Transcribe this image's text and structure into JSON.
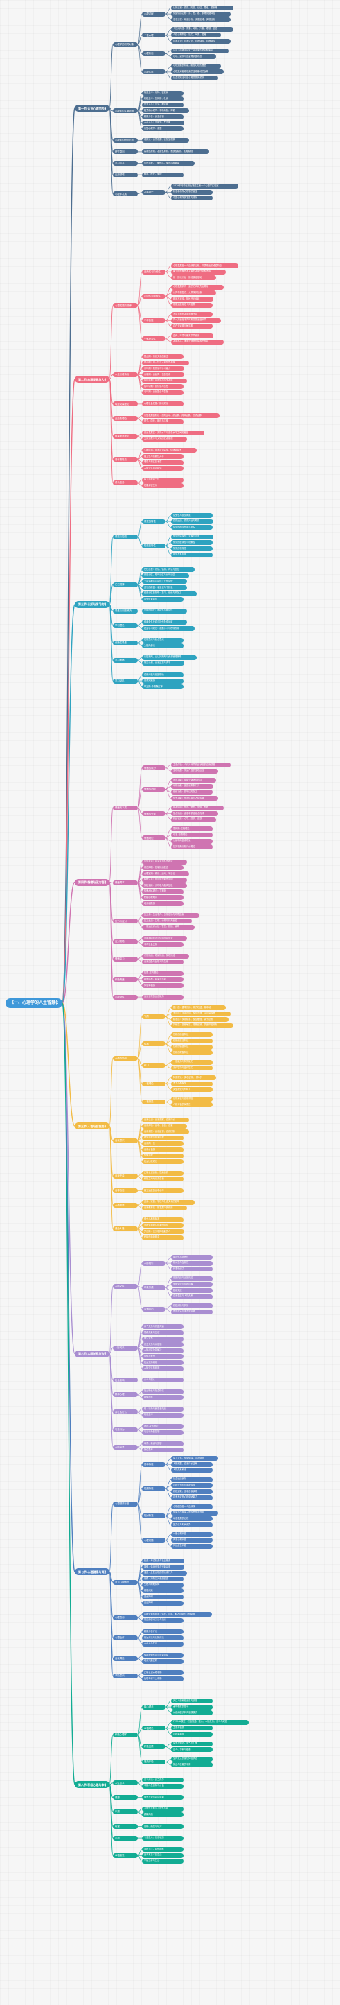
{
  "root": {
    "label": "《一、心理学的人生智慧(xiao...)》",
    "color": "#3f98d9"
  },
  "colors": {
    "line_root": "#4a6a8a",
    "branches": [
      "#4d6e90",
      "#ef6d82",
      "#2ea3c0",
      "#cf74b1",
      "#f2bb45",
      "#a98ed1",
      "#4f7fbf",
      "#12ac93"
    ]
  },
  "branches": [
    {
      "label": "第一节 认识心理学的基本原理",
      "children": [
        {
          "label": "心理学的研究对象",
          "children": [
            {
              "label": "心理过程",
              "leaves": [
                "认知过程：感觉、知觉、记忆、思维、想象等",
                "情绪情感过程：喜、怒、哀、惧等情绪体验",
                "意志过程：确定目标、克服困难、实现目标"
              ]
            },
            {
              "label": "个性心理",
              "leaves": [
                "个性倾向性：需要、动机、兴趣、理想、信念",
                "个性心理特征：能力、气质、性格",
                "自我意识：自我认识、自我体验、自我调控"
              ]
            },
            {
              "label": "心理状态",
              "leaves": [
                "注意：心理活动对一定对象的指向和集中",
                "心境、激情与应激等情绪状态"
              ]
            },
            {
              "label": "心理实质",
              "leaves": [
                "心理是脑的机能，脑是心理的器官",
                "心理是对客观现实的主观能动的反映",
                "社会实践活动是心理发展的源泉"
              ]
            }
          ]
        },
        {
          "label": "心理学的主要流派",
          "leaves": [
            "构造主义：冯特、铁钦纳",
            "机能主义：詹姆斯、杜威",
            "行为主义：华生、斯金纳",
            "格式塔心理学：韦特海默、苛勒",
            "精神分析：弗洛伊德",
            "人本主义：马斯洛、罗杰斯",
            "认知心理学：奈瑟"
          ]
        },
        {
          "label": "心理学的研究方法",
          "leaves": [
            "观察法：自然观察、实验室观察"
          ]
        },
        {
          "label": "研究原则",
          "leaves": [
            "客观性原则、发展性原则、系统性原则、伦理原则"
          ]
        },
        {
          "label": "学习意义",
          "leaves": [
            "认识自我，了解他人，促进心理健康"
          ]
        },
        {
          "label": "应用领域",
          "leaves": [
            "教育、医疗、管理"
          ]
        },
        {
          "label": "心理学发展",
          "children": [
            {
              "label": "发展简史",
              "leaves": [
                "1879年冯特在莱比锡建立第一个心理学实验室",
                "标志着科学心理学的诞生",
                "中国心理学的发展与现状"
              ]
            }
          ]
        }
      ]
    },
    {
      "label": "第二节 心理发展与人生阶段",
      "children": [
        {
          "label": "心理发展的规律",
          "children": [
            {
              "label": "连续性与阶段性",
              "leaves": [
                "心理发展是一个连续的过程，又表现出阶段性特点",
                "每个阶段都有其主要的发展任务和矛盾",
                "前一阶段为后一阶段奠定基础"
              ]
            },
            {
              "label": "定向性与顺序性",
              "leaves": [
                "心理发展具有一定的方向和先后顺序",
                "从简单到复杂、从具体到抽象",
                "顺序不可逆，阶段不可逾越",
                "发展速度存在个体差异"
              ]
            },
            {
              "label": "不平衡性",
              "leaves": [
                "不同方面的发展速度不同",
                "同一方面在不同时期发展速度不同",
                "存在关键期与敏感期"
              ]
            },
            {
              "label": "个体差异性",
              "leaves": [
                "遗传、环境与教育共同作用",
                "发展水平、速度与优势领域各不相同"
              ]
            }
          ]
        },
        {
          "label": "人生阶段特点",
          "leaves": [
            "婴儿期：依恋关系的建立",
            "幼儿期：自主性与主动性的发展",
            "童年期：勤奋感与学习能力",
            "青春期：自我同一性的形成",
            "成年早期：亲密感与事业发展",
            "成年中期：繁衍感与责任",
            "老年期：自我整合与智慧"
          ]
        },
        {
          "label": "埃里克森理论",
          "leaves": [
            "心理社会发展八阶段理论"
          ]
        },
        {
          "label": "皮亚杰理论",
          "leaves": [
            "认知发展四阶段：感知运动、前运算、具体运算、形式运算",
            "图式、同化、顺应与平衡"
          ]
        },
        {
          "label": "维果斯基理论",
          "leaves": [
            "最近发展区：实际水平与潜在水平之间的差距",
            "支架式教学与文化历史发展观"
          ]
        },
        {
          "label": "青年期特点",
          "leaves": [
            "生理成熟、自我意识高涨、情绪波动大",
            "独立性与依赖性并存",
            "理想与现实的矛盾",
            "人际交往需求增强"
          ]
        },
        {
          "label": "成长任务",
          "leaves": [
            "建立自我同一性",
            "发展亲密关系"
          ]
        }
      ]
    },
    {
      "label": "第三节 认知与学习的智慧",
      "children": [
        {
          "label": "感觉与知觉",
          "children": [
            {
              "label": "感觉的特性",
              "leaves": [
                "感受性与感觉阈限",
                "感觉适应、感觉对比与联觉",
                "感觉的相互作用与补偿"
              ]
            },
            {
              "label": "知觉的特性",
              "leaves": [
                "知觉的选择性：对象与背景",
                "知觉的整体性与理解性",
                "知觉的恒常性",
                "错觉及其应用"
              ]
            }
          ]
        },
        {
          "label": "记忆规律",
          "leaves": [
            "记忆过程：识记、保持、再认与回忆",
            "感觉记忆、短时记忆与长时记忆",
            "艾宾浩斯遗忘曲线：先快后慢",
            "遗忘的原因：衰退说与干扰说",
            "促进记忆的策略：复习、组织与精加工",
            "系列位置效应"
          ]
        },
        {
          "label": "思维与问题解决",
          "leaves": [
            "思维的特征：间接性与概括性"
          ]
        },
        {
          "label": "学习理论",
          "leaves": [
            "经典条件反射与操作条件反射",
            "社会学习理论：观察学习与榜样作用"
          ]
        },
        {
          "label": "创造性思维",
          "leaves": [
            "发散思维与聚合思维",
            "头脑风暴法"
          ]
        },
        {
          "label": "学习策略",
          "leaves": [
            "认知策略、元认知策略与资源管理策略",
            "制定计划、自我监控与调节"
          ]
        },
        {
          "label": "学习动机",
          "leaves": [
            "成就动机与归因理论",
            "自我效能感",
            "耶克斯-多德森定律"
          ]
        }
      ]
    },
    {
      "label": "第四节 情绪与压力管理",
      "children": [
        {
          "label": "情绪的本质",
          "children": [
            {
              "label": "情绪的成分",
              "leaves": [
                "主观体验：个体对不同情绪状态的自我感受",
                "生理唤醒：情绪产生的生理反应"
              ]
            },
            {
              "label": "情绪的功能",
              "leaves": [
                "适应功能：帮助个体适应环境",
                "动机功能：激励或抑制行为",
                "组织功能：影响认知加工",
                "信号功能：传递信息与人际沟通"
              ]
            },
            {
              "label": "情绪的分类",
              "leaves": [
                "基本情绪：快乐、愤怒、恐惧、悲哀",
                "复合情绪：由基本情绪组合而成",
                "情绪状态：心境、激情、应激"
              ]
            },
            {
              "label": "情绪理论",
              "leaves": [
                "詹姆斯-兰格理论",
                "坎农-巴德理论",
                "沙赫特两因素理论",
                "拉扎勒斯认知评价理论"
              ]
            }
          ]
        },
        {
          "label": "情绪调节",
          "leaves": [
            "认知重评：改变对事件的看法",
            "表达抑制：控制情绪表达",
            "合理宣泄：倾诉、运动、写日记",
            "转移注意：参加感兴趣的活动",
            "放松训练：深呼吸与肌肉放松",
            "情绪ABC理论：艾利斯",
            "积极心理暗示",
            "培养幽默感"
          ]
        },
        {
          "label": "压力与应对",
          "leaves": [
            "压力源：生活事件、日常烦恼与环境因素",
            "压力反应：生理、心理与行为反应",
            "一般适应综合征：警觉、抵抗、衰竭"
          ]
        },
        {
          "label": "应对策略",
          "leaves": [
            "问题指向应对与情绪指向应对",
            "寻求社会支持"
          ]
        },
        {
          "label": "情绪智力",
          "leaves": [
            "识别情绪、理解情绪、管理情绪",
            "自我激励与处理人际关系"
          ]
        },
        {
          "label": "积极情绪",
          "leaves": [
            "拓展-建构理论",
            "培养感恩、希望与乐观",
            "体验幸福感"
          ]
        },
        {
          "label": "心理韧性",
          "leaves": [
            "面对逆境的适应能力"
          ]
        }
      ]
    },
    {
      "label": "第五节 人格与自我成长",
      "children": [
        {
          "label": "人格的结构",
          "children": [
            {
              "label": "气质",
              "leaves": [
                "胆汁质：直率热情、精力旺盛、易冲动",
                "多血质：活泼好动、反应迅速、注意易转移",
                "粘液质：安静稳重、反应缓慢、善于忍耐",
                "抑郁质：孤僻敏感、观察细致、情绪体验深刻"
              ]
            },
            {
              "label": "性格",
              "leaves": [
                "性格的态度特征",
                "性格的意志特征",
                "性格的情绪特征",
                "性格的理智特征"
              ]
            },
            {
              "label": "能力",
              "leaves": [
                "一般能力与特殊能力",
                "流体智力与晶体智力"
              ]
            },
            {
              "label": "人格理论",
              "leaves": [
                "特质理论：奥尔波特、卡特尔",
                "大五人格模型",
                "类型理论与MBTI"
              ]
            },
            {
              "label": "人格测量",
              "leaves": [
                "自陈量表与投射测验",
                "人格评估的局限性"
              ]
            }
          ]
        },
        {
          "label": "自我意识",
          "leaves": [
            "自我认识：自我观察、自我评价",
            "自我体验：自尊、自信、自豪",
            "自我调控：自我监督、自我控制",
            "理想自我与现实自我",
            "自我同一性",
            "自我价值感",
            "镜像自我",
            "社会比较理论"
          ]
        },
        {
          "label": "自我完善",
          "leaves": [
            "正确认识自我，悦纳自我",
            "积极主动地改善自我"
          ]
        },
        {
          "label": "自尊自信",
          "leaves": [
            "建立适度的自尊水平"
          ]
        },
        {
          "label": "人格塑造",
          "leaves": [
            "遗传、家庭、学校与社会文化的影响",
            "自我教育在人格发展中的作用"
          ]
        },
        {
          "label": "健全人格",
          "leaves": [
            "健全人格的标准",
            "马斯洛自我实现者的特征",
            "罗杰斯：充分发挥机能的人",
            "积极的自我概念"
          ]
        }
      ]
    },
    {
      "label": "第六节 人际关系与沟通",
      "children": [
        {
          "label": "人际交往",
          "children": [
            {
              "label": "人际吸引",
              "leaves": [
                "接近性与熟悉性",
                "相似性与互补性",
                "外表吸引力"
              ]
            },
            {
              "label": "印象形成",
              "leaves": [
                "首因效应与近因效应",
                "晕轮效应与刻板印象",
                "投射效应",
                "自我表露与人际关系"
              ]
            },
            {
              "label": "沟通技巧",
              "leaves": [
                "积极倾听与共情",
                "有效表达与非言语沟通"
              ]
            }
          ]
        },
        {
          "label": "人际关系",
          "leaves": [
            "亲子关系与家庭沟通",
            "同伴关系与友谊",
            "师生关系",
            "恋爱关系与亲密感",
            "人际冲突及其解决",
            "合作与竞争",
            "社会支持网络",
            "人际交往的原则"
          ]
        },
        {
          "label": "社会影响",
          "leaves": [
            "从众与服从"
          ]
        },
        {
          "label": "群体心理",
          "leaves": [
            "社会助长与社会惰化",
            "群体思维"
          ]
        },
        {
          "label": "亲社会行为",
          "leaves": [
            "助人行为与旁观者效应",
            "利他主义"
          ]
        },
        {
          "label": "攻击行为",
          "leaves": [
            "挫折-攻击理论",
            "攻击行为的控制"
          ]
        },
        {
          "label": "人际智慧",
          "leaves": [
            "尊重、真诚与宽容",
            "换位思考"
          ]
        }
      ]
    },
    {
      "label": "第七节 心理健康与调适",
      "children": [
        {
          "label": "心理健康标准",
          "children": [
            {
              "label": "基本标准",
              "leaves": [
                "智力正常、情绪健康、意志健全",
                "人格完整、自我评价正确",
                "人际关系和谐"
              ]
            },
            {
              "label": "发展标准",
              "leaves": [
                "社会适应良好",
                "心理行为符合年龄特征",
                "积极进取、追求自我实现",
                "具有良好的心理调适能力"
              ]
            },
            {
              "label": "相对标准",
              "leaves": [
                "心理健康是一个连续体",
                "健康与不健康之间没有绝对界限",
                "动态发展的过程",
                "因文化与时代而异"
              ]
            },
            {
              "label": "心理问题",
              "leaves": [
                "一般心理问题",
                "严重心理问题",
                "神经症性问题"
              ]
            }
          ]
        },
        {
          "label": "常见心理困扰",
          "leaves": [
            "焦虑：考试焦虑与社交焦虑",
            "抑郁：情绪低落与兴趣减退",
            "强迫：反复出现的想法或行为",
            "恐惧：对特定对象的回避",
            "失眠与睡眠障碍",
            "网络成瘾",
            "进食障碍",
            "适应障碍"
          ]
        },
        {
          "label": "心理咨询",
          "leaves": [
            "心理咨询的原则：保密、自愿、助人自助的工作原则",
            "常见的咨询方法与流派"
          ]
        },
        {
          "label": "心理治疗",
          "leaves": [
            "精神分析疗法",
            "行为疗法与认知疗法",
            "人本主义疗法"
          ]
        },
        {
          "label": "自我调适",
          "leaves": [
            "保持规律作息与适量运动",
            "培养兴趣爱好"
          ]
        },
        {
          "label": "求助意识",
          "leaves": [
            "正确认识心理求助",
            "及时寻求专业帮助"
          ]
        }
      ]
    },
    {
      "label": "第八节 积极心理与幸福人生",
      "children": [
        {
          "label": "积极心理学",
          "children": [
            {
              "label": "核心理念",
              "leaves": [
                "关注人的积极品质与潜能",
                "塞利格曼的倡导",
                "从疾病模式转向健康模式"
              ]
            },
            {
              "label": "幸福理论",
              "leaves": [
                "PERMA模型：积极情绪、投入、人际关系、意义与成就",
                "主观幸福感",
                "心理幸福感"
              ]
            },
            {
              "label": "积极品质",
              "leaves": [
                "智慧与知识、勇气与仁爱",
                "正义、节制与超越"
              ]
            },
            {
              "label": "福流体验",
              "leaves": [
                "全神贯注的最佳体验状态",
                "挑战与技能的平衡"
              ]
            }
          ]
        },
        {
          "label": "人生意义",
          "leaves": [
            "意义疗法：弗兰克尔",
            "寻找人生目标与价值"
          ]
        },
        {
          "label": "感恩",
          "leaves": [
            "感恩日记与表达感谢"
          ]
        },
        {
          "label": "乐观",
          "leaves": [
            "习得性无助与习得性乐观",
            "解释风格"
          ]
        },
        {
          "label": "希望",
          "leaves": [
            "目标、路径与动力"
          ]
        },
        {
          "label": "心流",
          "leaves": [
            "专注投入、忘我状态"
          ]
        },
        {
          "label": "幸福智慧",
          "leaves": [
            "活在当下，珍惜拥有",
            "追求有意义的生活",
            "平衡工作与生活"
          ]
        }
      ]
    }
  ]
}
